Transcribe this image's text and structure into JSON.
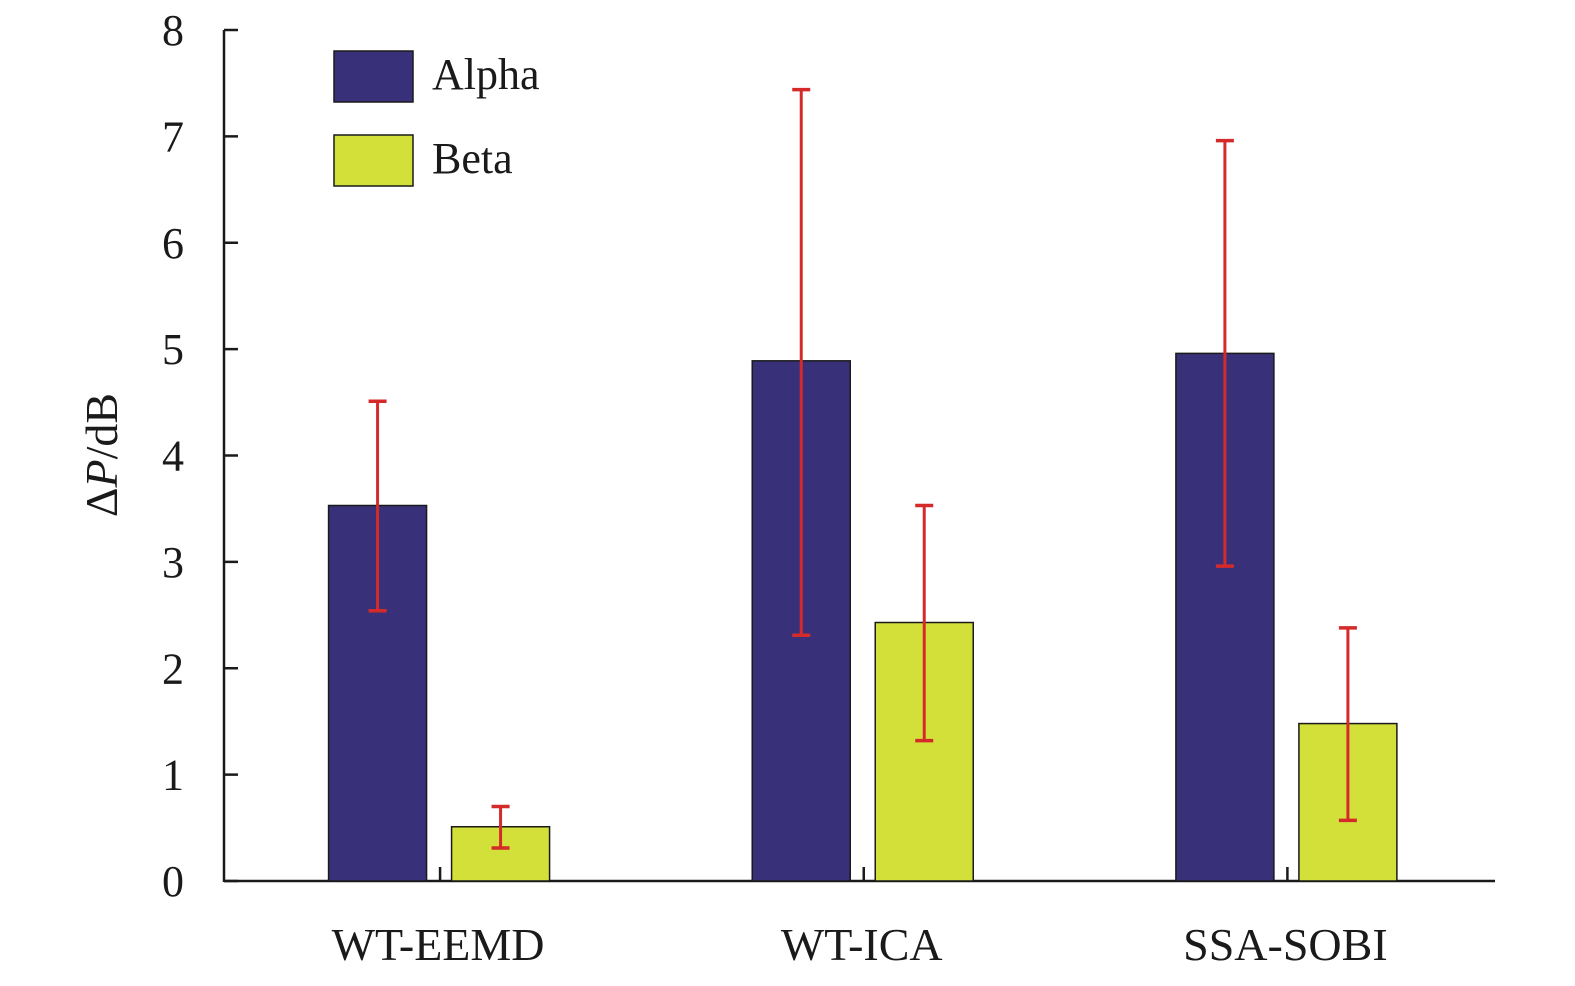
{
  "chart_data": {
    "type": "bar",
    "categories": [
      "WT-EEMD",
      "WT-ICA",
      "SSA-SOBI"
    ],
    "series": [
      {
        "name": "Alpha",
        "color": "#38317a",
        "values": [
          3.53,
          4.89,
          4.96
        ],
        "error_low": [
          2.54,
          2.31,
          2.96
        ],
        "error_high": [
          4.51,
          7.44,
          6.96
        ]
      },
      {
        "name": "Beta",
        "color": "#d4e03a",
        "values": [
          0.51,
          2.43,
          1.48
        ],
        "error_low": [
          0.31,
          1.32,
          0.57
        ],
        "error_high": [
          0.7,
          3.53,
          2.38
        ]
      }
    ],
    "error_bar_color": "#d42a2a",
    "ylabel_prefix": "Δ",
    "ylabel_var": "P",
    "ylabel_suffix": "/dB",
    "ylim": [
      0,
      8
    ],
    "yticks": [
      "0",
      "1",
      "2",
      "3",
      "4",
      "5",
      "6",
      "7",
      "8"
    ],
    "legend_position": "top-left",
    "grid": false
  }
}
